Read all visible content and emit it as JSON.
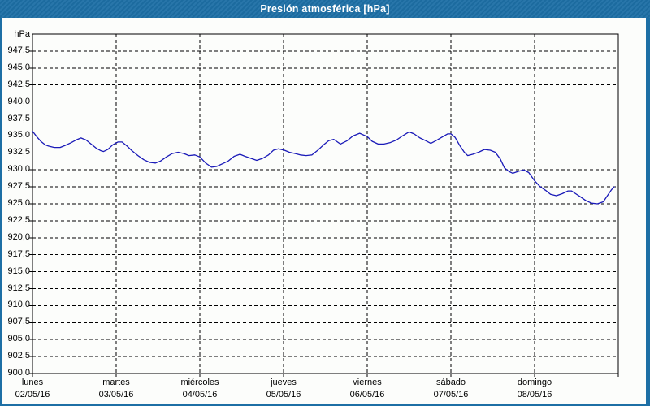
{
  "window": {
    "title": "Presión atmosférica [hPa]"
  },
  "colors": {
    "frame_blue": "#1d6fa5",
    "canvas_bg": "#fcfdfb",
    "grid_black": "#000000",
    "line_navy": "#1a1ab8"
  },
  "chart_data": {
    "type": "line",
    "title": "Presión atmosférica [hPa]",
    "grid": "dashed",
    "legend": "none",
    "y_axis": {
      "unit_label": "hPa",
      "min": 900,
      "max": 950,
      "tick_step": 2.5,
      "tick_labels": [
        "947,5",
        "945,0",
        "942,5",
        "940,0",
        "937,5",
        "935,0",
        "932,5",
        "930,0",
        "927,5",
        "925,0",
        "922,5",
        "920,0",
        "917,5",
        "915,0",
        "912,5",
        "910,0",
        "907,5",
        "905,0",
        "902,5",
        "900,0"
      ]
    },
    "x_axis": {
      "range_days": 7,
      "days": [
        {
          "name": "lunes",
          "date": "02/05/16"
        },
        {
          "name": "martes",
          "date": "03/05/16"
        },
        {
          "name": "miércoles",
          "date": "04/05/16"
        },
        {
          "name": "jueves",
          "date": "05/05/16"
        },
        {
          "name": "viernes",
          "date": "06/05/16"
        },
        {
          "name": "sábado",
          "date": "07/05/16"
        },
        {
          "name": "domingo",
          "date": "08/05/16"
        }
      ]
    },
    "series": [
      {
        "name": "Presión atmosférica",
        "color": "#1a1ab8",
        "x_days": [
          0.0,
          0.05,
          0.1,
          0.15,
          0.19,
          0.26,
          0.33,
          0.39,
          0.46,
          0.52,
          0.58,
          0.64,
          0.7,
          0.76,
          0.82,
          0.85,
          0.9,
          0.96,
          1.02,
          1.07,
          1.13,
          1.19,
          1.26,
          1.33,
          1.4,
          1.47,
          1.53,
          1.6,
          1.67,
          1.74,
          1.81,
          1.87,
          1.94,
          2.0,
          2.07,
          2.14,
          2.2,
          2.27,
          2.34,
          2.41,
          2.48,
          2.54,
          2.61,
          2.68,
          2.75,
          2.82,
          2.88,
          2.94,
          3.01,
          3.07,
          3.14,
          3.2,
          3.27,
          3.34,
          3.41,
          3.48,
          3.54,
          3.6,
          3.68,
          3.76,
          3.83,
          3.91,
          4.0,
          4.06,
          4.13,
          4.2,
          4.27,
          4.35,
          4.42,
          4.5,
          4.56,
          4.63,
          4.7,
          4.76,
          4.82,
          4.89,
          4.96,
          5.0,
          5.05,
          5.11,
          5.16,
          5.2,
          5.26,
          5.33,
          5.4,
          5.47,
          5.53,
          5.59,
          5.64,
          5.69,
          5.74,
          5.81,
          5.87,
          5.93,
          6.0,
          6.06,
          6.13,
          6.19,
          6.26,
          6.33,
          6.4,
          6.44,
          6.49,
          6.54,
          6.61,
          6.68,
          6.75,
          6.82,
          6.87,
          6.92,
          6.95
        ],
        "values_hpa": [
          935.7,
          934.9,
          934.2,
          933.7,
          933.5,
          933.3,
          933.3,
          933.6,
          934.0,
          934.4,
          934.7,
          934.4,
          933.8,
          933.2,
          932.8,
          932.7,
          933.0,
          933.7,
          934.1,
          934.1,
          933.5,
          932.8,
          932.1,
          931.5,
          931.1,
          931.0,
          931.3,
          931.9,
          932.4,
          932.6,
          932.4,
          932.1,
          932.2,
          931.9,
          931.0,
          930.4,
          930.5,
          930.9,
          931.3,
          932.0,
          932.3,
          932.0,
          931.7,
          931.4,
          931.7,
          932.2,
          932.9,
          933.1,
          932.9,
          932.6,
          932.4,
          932.2,
          932.1,
          932.2,
          932.9,
          933.7,
          934.3,
          934.5,
          933.8,
          934.3,
          935.0,
          935.4,
          934.9,
          934.2,
          933.8,
          933.8,
          934.0,
          934.4,
          935.0,
          935.6,
          935.3,
          934.7,
          934.3,
          933.9,
          934.3,
          934.8,
          935.3,
          935.3,
          934.8,
          933.5,
          932.6,
          932.1,
          932.3,
          932.6,
          933.0,
          932.9,
          932.6,
          931.6,
          930.3,
          929.8,
          929.5,
          929.8,
          930.0,
          929.6,
          928.4,
          927.6,
          927.0,
          926.4,
          926.2,
          926.5,
          926.9,
          926.9,
          926.5,
          926.1,
          925.5,
          925.1,
          925.0,
          925.3,
          926.2,
          927.1,
          927.5
        ]
      }
    ]
  }
}
